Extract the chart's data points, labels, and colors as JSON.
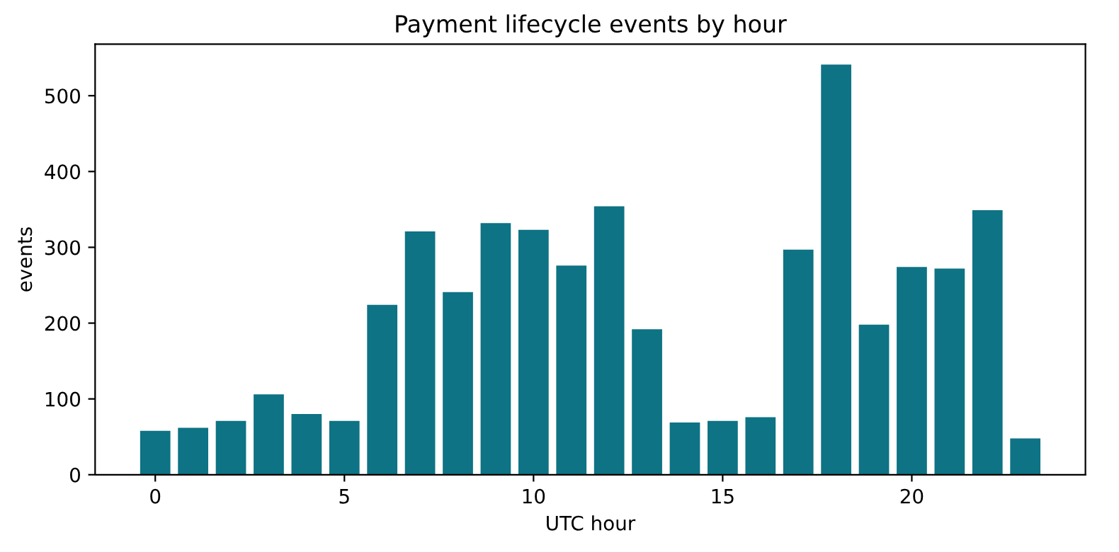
{
  "chart_data": {
    "type": "bar",
    "title": "Payment lifecycle events by hour",
    "xlabel": "UTC hour",
    "ylabel": "events",
    "x": [
      0,
      1,
      2,
      3,
      4,
      5,
      6,
      7,
      8,
      9,
      10,
      11,
      12,
      13,
      14,
      15,
      16,
      17,
      18,
      19,
      20,
      21,
      22,
      23
    ],
    "values": [
      58,
      62,
      71,
      106,
      80,
      71,
      224,
      321,
      241,
      332,
      323,
      276,
      354,
      192,
      69,
      71,
      76,
      297,
      541,
      198,
      274,
      272,
      349,
      48
    ],
    "color": "#0e7384",
    "xlim": [
      -1.59,
      24.59
    ],
    "xticks": [
      0,
      5,
      10,
      15,
      20
    ],
    "ylim": [
      0,
      568
    ],
    "yticks": [
      0,
      100,
      200,
      300,
      400,
      500
    ]
  }
}
